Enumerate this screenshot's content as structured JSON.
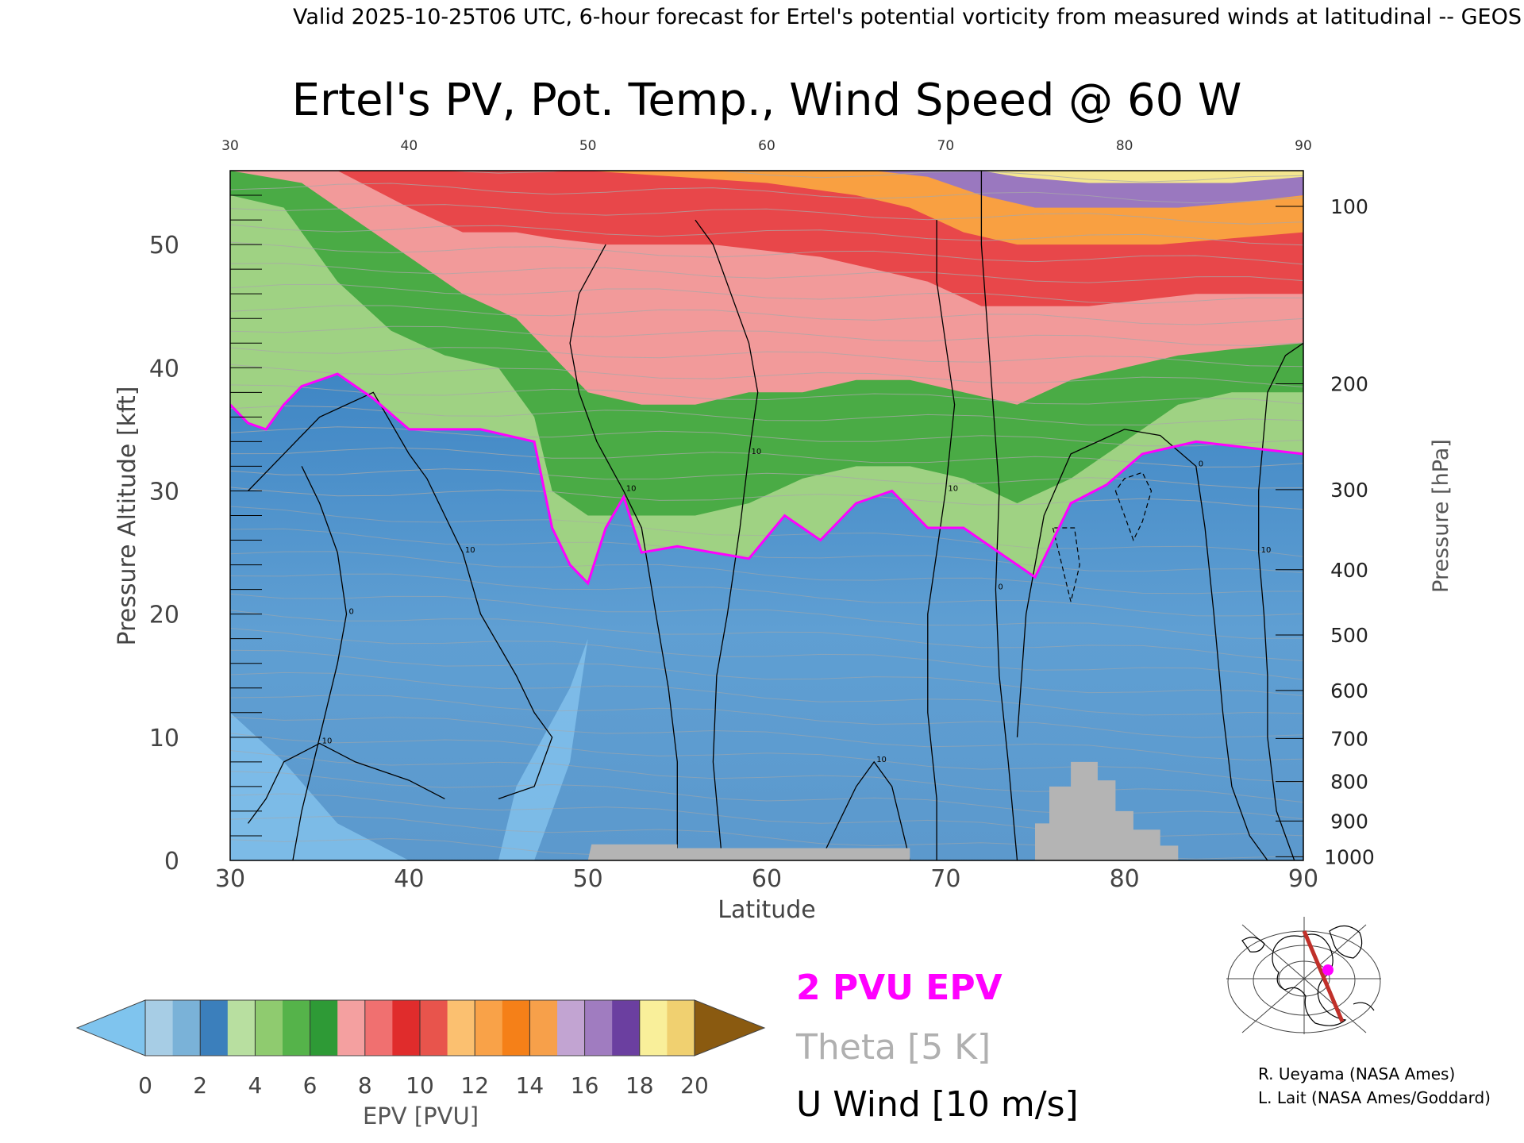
{
  "header": {
    "valid_line": "Valid 2025-10-25T06 UTC, 6-hour forecast for Ertel's potential vorticity from measured winds at latitudinal -- GEOS"
  },
  "chart_data": {
    "type": "heatmap",
    "title": "Ertel's PV, Pot. Temp., Wind Speed @ 60 W",
    "xlabel": "Latitude",
    "ylabel_left": "Pressure Altitude [kft]",
    "ylabel_right": "Pressure [hPa]",
    "xlim": [
      30,
      90
    ],
    "ylim_kft": [
      0,
      56
    ],
    "x_ticks": [
      "30",
      "40",
      "50",
      "60",
      "70",
      "80",
      "90"
    ],
    "x_ticks_top": [
      "30",
      "40",
      "50",
      "60",
      "70",
      "80",
      "90"
    ],
    "y_ticks_left": [
      "0",
      "10",
      "20",
      "30",
      "40",
      "50"
    ],
    "y_ticks_right": [
      {
        "label": "100",
        "kft": 53.1
      },
      {
        "label": "200",
        "kft": 38.7
      },
      {
        "label": "300",
        "kft": 30.1
      },
      {
        "label": "400",
        "kft": 23.6
      },
      {
        "label": "500",
        "kft": 18.3
      },
      {
        "label": "600",
        "kft": 13.8
      },
      {
        "label": "700",
        "kft": 9.9
      },
      {
        "label": "800",
        "kft": 6.4
      },
      {
        "label": "900",
        "kft": 3.2
      },
      {
        "label": "1000",
        "kft": 0.3
      }
    ],
    "tropopause_2pvu_kft": [
      [
        30,
        37
      ],
      [
        31,
        35.5
      ],
      [
        32,
        35
      ],
      [
        33,
        37
      ],
      [
        34,
        38.5
      ],
      [
        36,
        39.5
      ],
      [
        38,
        37.5
      ],
      [
        40,
        35
      ],
      [
        44,
        35
      ],
      [
        47,
        34
      ],
      [
        48,
        27
      ],
      [
        49,
        24
      ],
      [
        50,
        22.5
      ],
      [
        51,
        27
      ],
      [
        52,
        29.5
      ],
      [
        53,
        25
      ],
      [
        55,
        25.5
      ],
      [
        57,
        25
      ],
      [
        59,
        24.5
      ],
      [
        61,
        28
      ],
      [
        63,
        26
      ],
      [
        65,
        29
      ],
      [
        67,
        30
      ],
      [
        69,
        27
      ],
      [
        71,
        27
      ],
      [
        73,
        25
      ],
      [
        75,
        23
      ],
      [
        77,
        29
      ],
      [
        79,
        30.5
      ],
      [
        81,
        33
      ],
      [
        84,
        34
      ],
      [
        87,
        33.5
      ],
      [
        90,
        33
      ]
    ],
    "layer_tops": [
      {
        "band": "green",
        "pts": [
          [
            30,
            54
          ],
          [
            33,
            53
          ],
          [
            36,
            47
          ],
          [
            39,
            43
          ],
          [
            42,
            41
          ],
          [
            45,
            40
          ],
          [
            47,
            36
          ],
          [
            48,
            30
          ],
          [
            50,
            28
          ],
          [
            53,
            28
          ],
          [
            56,
            28
          ],
          [
            59,
            29
          ],
          [
            62,
            31
          ],
          [
            65,
            32
          ],
          [
            68,
            32
          ],
          [
            71,
            31
          ],
          [
            74,
            29
          ],
          [
            77,
            31
          ],
          [
            80,
            34
          ],
          [
            83,
            37
          ],
          [
            86,
            38
          ],
          [
            90,
            38
          ]
        ]
      },
      {
        "band": "pink",
        "pts": [
          [
            30,
            56
          ],
          [
            34,
            55
          ],
          [
            37,
            52
          ],
          [
            40,
            49
          ],
          [
            43,
            46
          ],
          [
            46,
            44
          ],
          [
            48,
            41
          ],
          [
            50,
            38
          ],
          [
            53,
            37
          ],
          [
            56,
            37
          ],
          [
            59,
            38
          ],
          [
            62,
            38
          ],
          [
            65,
            39
          ],
          [
            68,
            39
          ],
          [
            71,
            38
          ],
          [
            74,
            37
          ],
          [
            77,
            39
          ],
          [
            80,
            40
          ],
          [
            83,
            41
          ],
          [
            86,
            41.5
          ],
          [
            90,
            42
          ]
        ]
      },
      {
        "band": "red",
        "pts": [
          [
            30,
            56
          ],
          [
            36,
            56
          ],
          [
            40,
            53
          ],
          [
            43,
            51
          ],
          [
            46,
            51
          ],
          [
            48,
            50.5
          ],
          [
            51,
            50
          ],
          [
            54,
            50
          ],
          [
            57,
            50
          ],
          [
            60,
            49.5
          ],
          [
            63,
            49
          ],
          [
            66,
            48
          ],
          [
            69,
            47
          ],
          [
            72,
            45
          ],
          [
            75,
            45
          ],
          [
            78,
            45
          ],
          [
            81,
            45.5
          ],
          [
            84,
            46
          ],
          [
            90,
            46
          ]
        ]
      },
      {
        "band": "orange",
        "pts": [
          [
            30,
            56
          ],
          [
            50,
            56
          ],
          [
            60,
            55
          ],
          [
            65,
            54
          ],
          [
            68,
            53
          ],
          [
            71,
            51
          ],
          [
            74,
            50
          ],
          [
            78,
            50
          ],
          [
            82,
            50
          ],
          [
            86,
            50.5
          ],
          [
            90,
            51
          ]
        ]
      },
      {
        "band": "purple",
        "pts": [
          [
            30,
            56
          ],
          [
            66,
            56
          ],
          [
            69,
            55.5
          ],
          [
            72,
            54
          ],
          [
            75,
            53
          ],
          [
            79,
            53
          ],
          [
            83,
            53
          ],
          [
            87,
            53.5
          ],
          [
            90,
            54
          ]
        ]
      },
      {
        "band": "yellow",
        "pts": [
          [
            30,
            56
          ],
          [
            72,
            56
          ],
          [
            74,
            55.5
          ],
          [
            78,
            55
          ],
          [
            82,
            55
          ],
          [
            86,
            55
          ],
          [
            90,
            55.5
          ]
        ]
      }
    ],
    "terrain_kft": [
      [
        50,
        0
      ],
      [
        50.2,
        1.3
      ],
      [
        55,
        1.3
      ],
      [
        55,
        1.0
      ],
      [
        68,
        1.0
      ],
      [
        68,
        0
      ],
      [
        75,
        0
      ],
      [
        75,
        3
      ],
      [
        75.8,
        3
      ],
      [
        75.8,
        6
      ],
      [
        77,
        6
      ],
      [
        77,
        8
      ],
      [
        78.5,
        8
      ],
      [
        78.5,
        6.5
      ],
      [
        79.5,
        6.5
      ],
      [
        79.5,
        4
      ],
      [
        80.5,
        4
      ],
      [
        80.5,
        2.5
      ],
      [
        82,
        2.5
      ],
      [
        82,
        1.2
      ],
      [
        83,
        1.2
      ],
      [
        83,
        0
      ]
    ],
    "u_wind_contours": [
      {
        "label": "10",
        "pts": [
          [
            31,
            30
          ],
          [
            33,
            33
          ],
          [
            35,
            36
          ],
          [
            38,
            38
          ],
          [
            40,
            33
          ],
          [
            41,
            31
          ],
          [
            42,
            28
          ],
          [
            43,
            25
          ],
          [
            44,
            20
          ],
          [
            46,
            15
          ],
          [
            47,
            12
          ],
          [
            48,
            10
          ],
          [
            47,
            6
          ],
          [
            45,
            5
          ]
        ]
      },
      {
        "label": "10",
        "pts": [
          [
            42,
            5
          ],
          [
            40,
            6.5
          ],
          [
            37,
            8
          ],
          [
            35,
            9.5
          ],
          [
            33,
            8
          ],
          [
            32,
            5
          ],
          [
            31,
            3
          ]
        ]
      },
      {
        "label": "0",
        "pts": [
          [
            33.5,
            0
          ],
          [
            34,
            4
          ],
          [
            35,
            10
          ],
          [
            36,
            16
          ],
          [
            36.5,
            20
          ],
          [
            36,
            25
          ],
          [
            35,
            29
          ],
          [
            34,
            32
          ]
        ]
      },
      {
        "label": "10",
        "pts": [
          [
            55,
            0
          ],
          [
            55,
            8
          ],
          [
            54.5,
            14
          ],
          [
            53.8,
            20
          ],
          [
            53,
            27
          ],
          [
            52,
            30
          ],
          [
            50.5,
            34
          ],
          [
            49.5,
            38
          ],
          [
            49,
            42
          ],
          [
            49.5,
            46
          ],
          [
            51,
            50
          ]
        ]
      },
      {
        "label": "10",
        "pts": [
          [
            57.5,
            0
          ],
          [
            57,
            8
          ],
          [
            57.2,
            15
          ],
          [
            57.8,
            20
          ],
          [
            58.5,
            27
          ],
          [
            59,
            33
          ],
          [
            59.5,
            38
          ],
          [
            59,
            42
          ],
          [
            58,
            46
          ],
          [
            57,
            50
          ],
          [
            56,
            52
          ]
        ]
      },
      {
        "label": "10",
        "pts": [
          [
            63,
            0
          ],
          [
            64,
            3
          ],
          [
            65,
            6
          ],
          [
            66,
            8
          ],
          [
            67,
            6
          ],
          [
            67.5,
            3
          ],
          [
            68,
            0
          ]
        ]
      },
      {
        "label": "10",
        "pts": [
          [
            69.5,
            0
          ],
          [
            69.5,
            5
          ],
          [
            69,
            12
          ],
          [
            69,
            20
          ],
          [
            69.5,
            25
          ],
          [
            70,
            30
          ],
          [
            70.5,
            37
          ],
          [
            70,
            42
          ],
          [
            69.5,
            47
          ],
          [
            69.5,
            52
          ]
        ]
      },
      {
        "label": "0",
        "pts": [
          [
            72,
            56
          ],
          [
            72,
            50
          ],
          [
            72.5,
            40
          ],
          [
            73,
            30
          ],
          [
            72.8,
            22
          ],
          [
            73,
            15
          ],
          [
            73.5,
            8
          ],
          [
            74,
            0
          ]
        ]
      },
      {
        "label": "0",
        "pts": [
          [
            74,
            10
          ],
          [
            74.5,
            20
          ],
          [
            75.5,
            28
          ],
          [
            77,
            33
          ],
          [
            80,
            35
          ],
          [
            82,
            34.5
          ],
          [
            84,
            32
          ],
          [
            84.5,
            27
          ],
          [
            85,
            20
          ],
          [
            85.5,
            12
          ],
          [
            86,
            6
          ],
          [
            87,
            2
          ],
          [
            88,
            0
          ]
        ]
      },
      {
        "label": "10",
        "pts": [
          [
            89.5,
            0
          ],
          [
            88.5,
            4
          ],
          [
            88,
            10
          ],
          [
            88,
            15
          ],
          [
            87.8,
            20
          ],
          [
            87.5,
            25
          ],
          [
            87.5,
            30
          ],
          [
            88,
            38
          ],
          [
            89,
            41
          ],
          [
            90,
            42
          ]
        ]
      }
    ],
    "colorbar": {
      "title": "EPV [PVU]",
      "tick_labels": [
        "0",
        "2",
        "4",
        "6",
        "8",
        "10",
        "12",
        "14",
        "16",
        "18",
        "20"
      ],
      "bins": [
        0,
        1,
        2,
        3,
        4,
        5,
        6,
        7,
        8,
        9,
        10,
        11,
        12,
        13,
        14,
        15,
        16,
        17,
        18,
        19,
        20
      ],
      "colors": [
        "#7fc4ee",
        "#a7cde5",
        "#7ab2d8",
        "#3b7fbc",
        "#b8dfa0",
        "#8fcb6f",
        "#55b34a",
        "#2e9a36",
        "#f4a0a0",
        "#f07070",
        "#e02c2c",
        "#e8544c",
        "#fbc070",
        "#f9a248",
        "#f58018",
        "#f7a04a",
        "#c2a4d2",
        "#a07cc0",
        "#6b3fa0",
        "#f9ef9a",
        "#f0d070",
        "#8a5a10"
      ],
      "under_color": "#7fc4ee",
      "over_color": "#8a5a10"
    },
    "legend": [
      {
        "label": "2 PVU EPV",
        "color": "#ff00ff"
      },
      {
        "label": "Theta [5 K]",
        "color": "#b0b0b0"
      },
      {
        "label": "U Wind [10 m/s]",
        "color": "#000000"
      }
    ]
  },
  "credits": {
    "line1": "R. Ueyama (NASA Ames)",
    "line2": "L. Lait (NASA Ames/Goddard)"
  },
  "colors": {
    "tropopause": "#ff00ff",
    "terrain": "#b4b4b4",
    "troposphere": "#6aa7d6",
    "troposphere_dark": "#3b7fbc",
    "section_line": "#c0302a",
    "section_point": "#ff00ff"
  }
}
